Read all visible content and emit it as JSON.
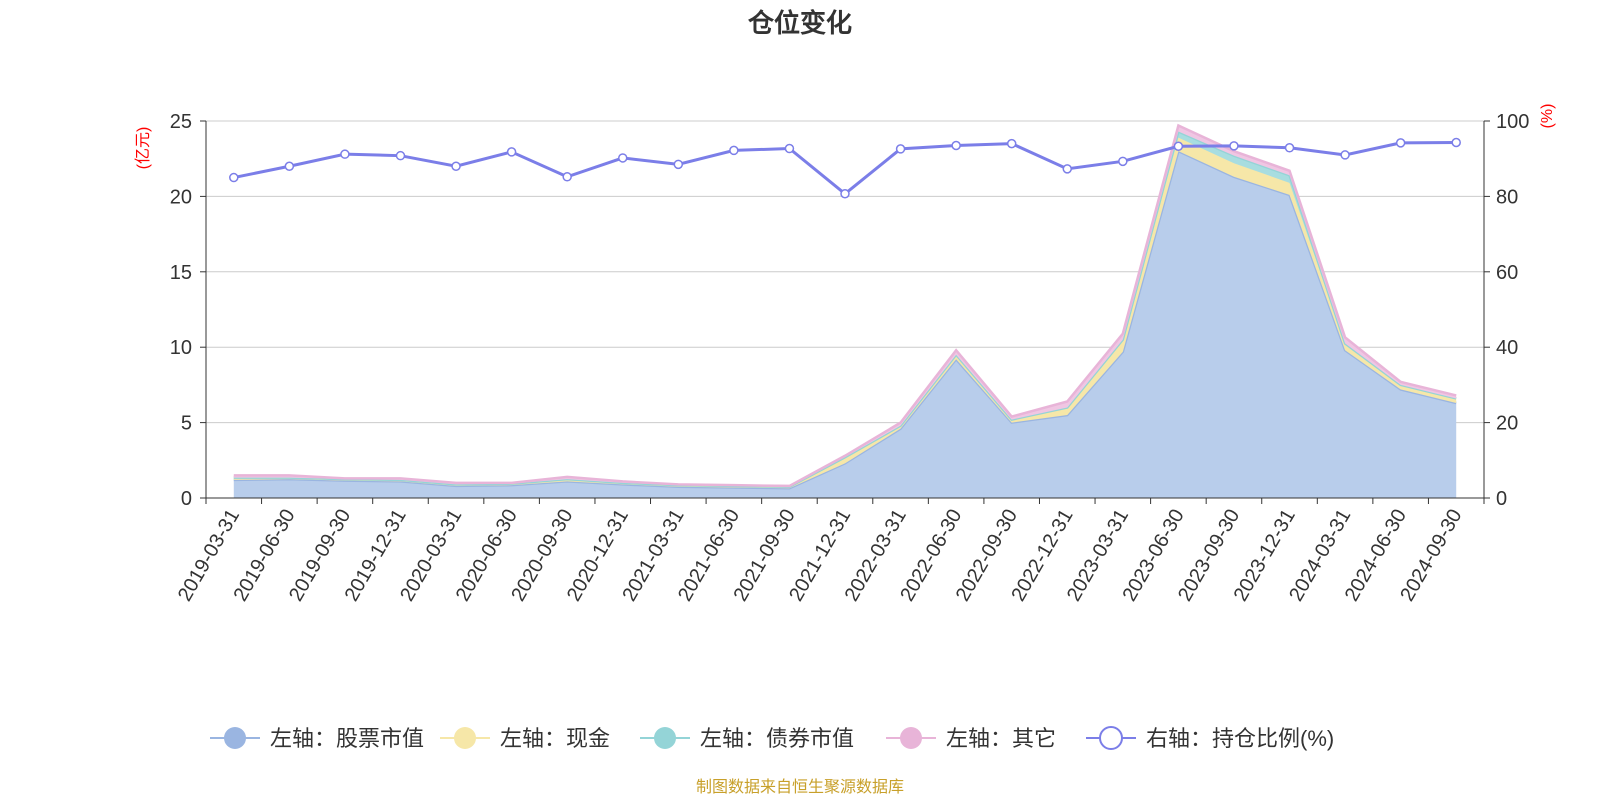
{
  "chart_data": {
    "type": "area",
    "title": "仓位变化",
    "left_axis_unit": "(亿元)",
    "right_axis_unit": "(%)",
    "left_ylim": [
      0,
      25
    ],
    "left_ticks": [
      0,
      5,
      10,
      15,
      20,
      25
    ],
    "right_ylim": [
      0,
      100
    ],
    "right_ticks": [
      0,
      20,
      40,
      60,
      80,
      100
    ],
    "categories": [
      "2019-03-31",
      "2019-06-30",
      "2019-09-30",
      "2019-12-31",
      "2020-03-31",
      "2020-06-30",
      "2020-09-30",
      "2020-12-31",
      "2021-03-31",
      "2021-06-30",
      "2021-09-30",
      "2021-12-31",
      "2022-03-31",
      "2022-06-30",
      "2022-09-30",
      "2022-12-31",
      "2023-03-31",
      "2023-06-30",
      "2023-09-30",
      "2023-12-31",
      "2024-03-31",
      "2024-06-30",
      "2024-09-30"
    ],
    "stacked_series": [
      {
        "name": "左轴：股票市值",
        "color": "#9ab5e1",
        "fill": "#b8cdeb",
        "values": [
          1.2,
          1.25,
          1.15,
          1.1,
          0.8,
          0.85,
          1.1,
          0.9,
          0.75,
          0.7,
          0.65,
          2.3,
          4.6,
          9.2,
          5.0,
          5.5,
          9.7,
          23.0,
          21.3,
          20.1,
          9.8,
          7.2,
          6.3
        ]
      },
      {
        "name": "左轴：现金",
        "color": "#f6e7a8",
        "fill": "#f6e7a8",
        "values": [
          0.15,
          0.1,
          0.1,
          0.1,
          0.1,
          0.1,
          0.15,
          0.1,
          0.1,
          0.1,
          0.1,
          0.4,
          0.2,
          0.3,
          0.2,
          0.5,
          0.8,
          0.9,
          0.9,
          0.8,
          0.4,
          0.3,
          0.3
        ]
      },
      {
        "name": "左轴：债券市值",
        "color": "#94d4d7",
        "fill": "#a8dde0",
        "values": [
          0,
          0,
          0,
          0,
          0,
          0,
          0,
          0,
          0,
          0,
          0,
          0,
          0,
          0,
          0,
          0,
          0,
          0.4,
          0.5,
          0.5,
          0.05,
          0,
          0
        ]
      },
      {
        "name": "左轴：其它",
        "color": "#e8b4d8",
        "fill": "#f0c6e3",
        "values": [
          0.15,
          0.15,
          0.05,
          0.1,
          0.1,
          0.05,
          0.15,
          0.1,
          0.05,
          0.05,
          0.05,
          0.1,
          0.2,
          0.3,
          0.2,
          0.4,
          0.4,
          0.4,
          0.3,
          0.3,
          0.4,
          0.2,
          0.2
        ]
      }
    ],
    "line_series": {
      "name": "右轴：持仓比例(%)",
      "color": "#7b7ee8",
      "values": [
        85,
        88,
        91.2,
        90.8,
        88,
        91.8,
        85.2,
        90.2,
        88.5,
        92.2,
        92.7,
        80.7,
        92.6,
        93.5,
        94,
        87.3,
        89.3,
        93.3,
        93.4,
        92.9,
        91,
        94.2,
        94.3
      ]
    },
    "legend_position": "bottom",
    "grid": true
  },
  "source_text": "制图数据来自恒生聚源数据库"
}
